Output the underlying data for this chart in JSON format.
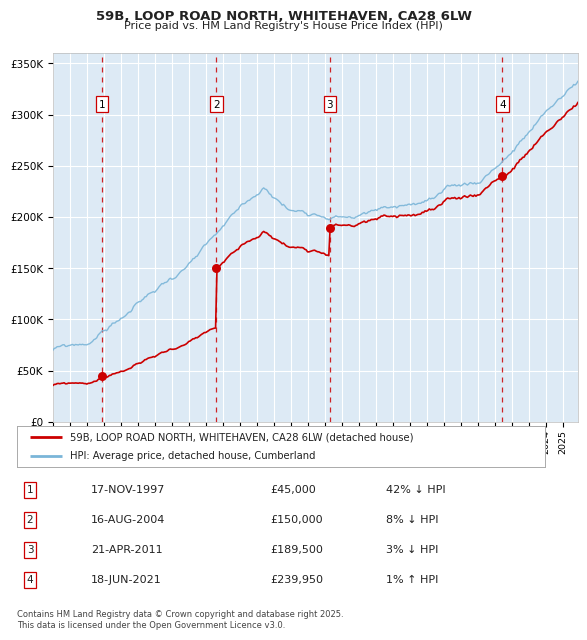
{
  "title": "59B, LOOP ROAD NORTH, WHITEHAVEN, CA28 6LW",
  "subtitle": "Price paid vs. HM Land Registry's House Price Index (HPI)",
  "sale_dates_num": [
    1997.88,
    2004.62,
    2011.3,
    2021.46
  ],
  "sale_prices": [
    45000,
    150000,
    189500,
    239950
  ],
  "sale_labels": [
    "1",
    "2",
    "3",
    "4"
  ],
  "hpi_color": "#7ab5d8",
  "price_color": "#cc0000",
  "marker_color": "#cc0000",
  "vline_color": "#cc0000",
  "background_color": "#ddeaf5",
  "grid_color": "#ffffff",
  "yticks": [
    0,
    50000,
    100000,
    150000,
    200000,
    250000,
    300000,
    350000
  ],
  "ytick_labels": [
    "£0",
    "£50K",
    "£100K",
    "£150K",
    "£200K",
    "£250K",
    "£300K",
    "£350K"
  ],
  "xmin": 1995.0,
  "xmax": 2025.9,
  "ymin": 0,
  "ymax": 360000,
  "legend_line1": "59B, LOOP ROAD NORTH, WHITEHAVEN, CA28 6LW (detached house)",
  "legend_line2": "HPI: Average price, detached house, Cumberland",
  "table_rows": [
    [
      "1",
      "17-NOV-1997",
      "£45,000",
      "42% ↓ HPI"
    ],
    [
      "2",
      "16-AUG-2004",
      "£150,000",
      "8% ↓ HPI"
    ],
    [
      "3",
      "21-APR-2011",
      "£189,500",
      "3% ↓ HPI"
    ],
    [
      "4",
      "18-JUN-2021",
      "£239,950",
      "1% ↑ HPI"
    ]
  ],
  "footnote": "Contains HM Land Registry data © Crown copyright and database right 2025.\nThis data is licensed under the Open Government Licence v3.0."
}
